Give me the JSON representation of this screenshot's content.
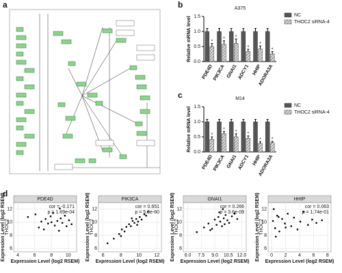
{
  "panel_labels": [
    "a",
    "b",
    "c",
    "d"
  ],
  "chart_data": [
    {
      "type": "bar",
      "title": "A375",
      "ylabel": "Relative mRNA level",
      "categories": [
        "PDE4D",
        "PIK3CA",
        "GNAI1",
        "ADCY1",
        "HHIP",
        "ADORA3A"
      ],
      "series": [
        {
          "name": "NC",
          "color": "#555555",
          "values": [
            1.0,
            1.0,
            1.0,
            1.0,
            1.0,
            1.0
          ],
          "errors": [
            0.1,
            0.1,
            0.1,
            0.1,
            0.1,
            0.1
          ]
        },
        {
          "name": "THOC2 siRNA-4",
          "color": "#dddddd",
          "values": [
            0.5,
            0.57,
            0.6,
            0.33,
            0.42,
            0.25
          ],
          "errors": [
            0.1,
            0.12,
            0.15,
            0.08,
            0.1,
            0.08
          ],
          "significance": [
            "*",
            "*",
            "*",
            "*",
            "*",
            "*"
          ]
        }
      ],
      "ylim": [
        0,
        1.5
      ],
      "yticks": [
        {
          "value": 0,
          "label": "0.0"
        },
        0.5,
        {
          "value": 1,
          "label": "1.0"
        },
        1.5
      ]
    },
    {
      "type": "bar",
      "title": "M14",
      "ylabel": "Relative mRNA level",
      "categories": [
        "PDE4D",
        "PIK3CA",
        "GNAI1",
        "ADCY1",
        "HHIP",
        "ADORA3A"
      ],
      "series": [
        {
          "name": "NC",
          "color": "#555555",
          "values": [
            1.0,
            1.0,
            1.0,
            1.0,
            1.0,
            1.0
          ],
          "errors": [
            0.08,
            0.08,
            0.08,
            0.08,
            0.08,
            0.08
          ]
        },
        {
          "name": "THOC2 siRNA-4",
          "color": "#dddddd",
          "values": [
            0.42,
            0.6,
            0.5,
            0.45,
            0.28,
            0.3
          ],
          "errors": [
            0.08,
            0.08,
            0.1,
            0.08,
            0.06,
            0.05
          ],
          "significance": [
            "*",
            "*",
            "*",
            "*",
            "*",
            "*"
          ]
        }
      ],
      "ylim": [
        0,
        1.5
      ],
      "yticks": [
        {
          "value": 0,
          "label": "0.0"
        },
        0.5,
        {
          "value": 1,
          "label": "1.0"
        },
        1.5
      ]
    },
    {
      "type": "scatter",
      "title": "PDE4D",
      "ylabel": "THOC2",
      "ylabel_outer": "Expression Level (log2 RSEM)",
      "xlabel": "Expression Level (log2 RSEM)",
      "annotation": [
        "cor = -0.171",
        "p = 1.69e-04"
      ],
      "x": [
        5.2,
        6.1,
        6.8,
        7.3,
        7.6,
        7.9,
        8.2,
        8.4,
        8.7,
        8.9,
        9.1,
        9.3,
        9.6,
        9.8,
        10.1,
        10.4,
        7.1,
        8.0,
        9.0,
        6.5
      ],
      "values": [
        10.8,
        11.2,
        10.1,
        10.5,
        9.8,
        10.9,
        11.4,
        9.5,
        10.2,
        8.7,
        10.6,
        9.9,
        11.0,
        9.4,
        10.3,
        9.7,
        8.9,
        10.0,
        12.1,
        9.2
      ],
      "xlim": [
        3.5,
        11
      ],
      "ylim": [
        5.5,
        13
      ],
      "xticks": [
        4,
        6,
        8,
        10
      ],
      "yticks": [
        6,
        8,
        10,
        12
      ]
    },
    {
      "type": "scatter",
      "title": "PIK3CA",
      "ylabel": "THOC2",
      "ylabel_outer": "Expression Level (log2 RSEM)",
      "xlabel": "Expression Level (log2 RSEM)",
      "annotation": [
        "cor = 0.651",
        "p = 5.8e-60"
      ],
      "x": [
        6.5,
        7.2,
        7.8,
        8.1,
        8.4,
        8.6,
        8.9,
        9.1,
        9.3,
        9.5,
        9.7,
        9.9,
        10.1,
        10.3,
        10.6,
        11.0,
        8.0,
        9.2,
        9.8,
        10.8
      ],
      "values": [
        6.8,
        7.5,
        8.2,
        8.9,
        8.6,
        9.3,
        9.7,
        9.4,
        10.2,
        9.9,
        10.5,
        10.1,
        10.8,
        10.4,
        11.2,
        11.6,
        7.9,
        10.6,
        9.6,
        11.0
      ],
      "xlim": [
        5.5,
        12.5
      ],
      "ylim": [
        5.5,
        13
      ],
      "xticks": [
        6,
        8,
        10,
        12
      ],
      "yticks": [
        6,
        8,
        10,
        12
      ]
    },
    {
      "type": "scatter",
      "title": "GNAI1",
      "ylabel": "THOC2",
      "ylabel_outer": "Expression Level (log2 RSEM)",
      "xlabel": "Expression Level (log2 RSEM)",
      "annotation": [
        "cor = 0.266",
        "p = 3.6e-09"
      ],
      "x": [
        7.0,
        7.8,
        8.3,
        8.7,
        9.0,
        9.2,
        9.4,
        9.6,
        9.8,
        10.0,
        10.2,
        10.4,
        10.6,
        10.9,
        11.2,
        8.5,
        9.5,
        10.1,
        9.9,
        11.5
      ],
      "values": [
        8.5,
        9.2,
        9.8,
        9.0,
        10.4,
        9.6,
        10.8,
        10.1,
        9.4,
        10.6,
        11.1,
        10.3,
        9.9,
        10.9,
        11.3,
        8.8,
        11.5,
        9.7,
        12.0,
        10.5
      ],
      "xlim": [
        5.5,
        12.5
      ],
      "ylim": [
        5.5,
        13
      ],
      "xticks": [
        {
          "value": 6,
          "label": "6.0"
        },
        7.5,
        {
          "value": 9,
          "label": "9.0"
        },
        10.5,
        {
          "value": 12,
          "label": "12.0"
        }
      ],
      "yticks": [
        6,
        8,
        10,
        12
      ]
    },
    {
      "type": "scatter",
      "title": "HHIP",
      "ylabel": "THOC2",
      "ylabel_outer": "Expression Level (log2 RSEM)",
      "xlabel": "Expression Level (log2 RSEM)",
      "annotation": [
        "cor = 0.063",
        "p = 1.74e-01"
      ],
      "x": [
        0.2,
        0.5,
        0.8,
        1.1,
        1.5,
        1.9,
        2.3,
        2.8,
        3.2,
        3.7,
        4.1,
        4.6,
        5.2,
        5.8,
        6.4,
        0.3,
        0.6,
        1.0,
        2.0,
        7.2
      ],
      "values": [
        10.2,
        9.1,
        11.0,
        8.6,
        10.5,
        9.8,
        11.3,
        9.4,
        10.7,
        8.9,
        10.1,
        11.6,
        9.6,
        10.4,
        9.9,
        12.0,
        7.8,
        10.8,
        9.2,
        10.3
      ],
      "xlim": [
        -0.5,
        8.5
      ],
      "ylim": [
        5.5,
        13
      ],
      "xticks": [
        0,
        2,
        4,
        6,
        8
      ],
      "yticks": [
        6,
        8,
        10,
        12
      ]
    }
  ]
}
